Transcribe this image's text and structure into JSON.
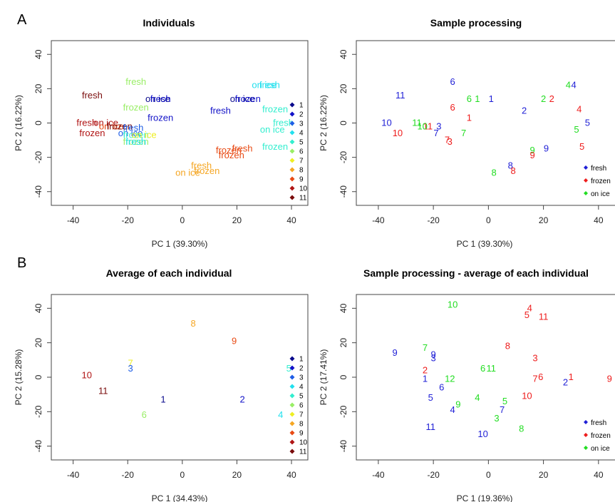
{
  "panel_letters": {
    "a": "A",
    "b": "B"
  },
  "colors": {
    "fresh": "#1f1fd6",
    "frozen": "#ee1c1c",
    "on_ice": "#22dd22",
    "individual": [
      "#0a0a8c",
      "#1212c8",
      "#1e5ee6",
      "#1e90ff",
      "#22e0ee",
      "#33eecf",
      "#99ee66",
      "#eeee22",
      "#f5a623",
      "#f07a1a",
      "#e84a14",
      "#b01414",
      "#7a0c0c"
    ]
  },
  "chart_data": [
    {
      "type": "scatter",
      "title": "Individuals",
      "xlabel": "PC 1 (39.30%)",
      "ylabel": "PC 2 (16.22%)",
      "xlim": [
        -48,
        46
      ],
      "ylim": [
        -48,
        48
      ],
      "xticks": [
        -40,
        -20,
        0,
        20,
        40
      ],
      "yticks": [
        -40,
        -20,
        0,
        20,
        40
      ],
      "legend": {
        "position": "right",
        "entries": [
          "1",
          "2",
          "3",
          "4",
          "5",
          "6",
          "7",
          "8",
          "9",
          "10",
          "11"
        ]
      },
      "points": [
        {
          "x": -33,
          "y": 16,
          "label": "fresh",
          "group": 11
        },
        {
          "x": -35,
          "y": 0,
          "label": "fresh",
          "group": 10
        },
        {
          "x": -33,
          "y": -6,
          "label": "frozen",
          "group": 10
        },
        {
          "x": -28,
          "y": 0,
          "label": "on ice",
          "group": 10
        },
        {
          "x": -26,
          "y": -2,
          "label": "on ice",
          "group": 9
        },
        {
          "x": -23,
          "y": -2,
          "label": "frozen",
          "group": 11
        },
        {
          "x": -17,
          "y": 24,
          "label": "fresh",
          "group": 6
        },
        {
          "x": -17,
          "y": 9,
          "label": "frozen",
          "group": 6
        },
        {
          "x": -9,
          "y": 14,
          "label": "on ice",
          "group": 1
        },
        {
          "x": -8,
          "y": 14,
          "label": "fresh",
          "group": 2
        },
        {
          "x": -8,
          "y": 3,
          "label": "frozen",
          "group": 2
        },
        {
          "x": -18,
          "y": -3,
          "label": "fresh",
          "group": 3
        },
        {
          "x": -19,
          "y": -6,
          "label": "on ice",
          "group": 3
        },
        {
          "x": -17,
          "y": -7,
          "label": "frozen",
          "group": 5
        },
        {
          "x": -17,
          "y": -11,
          "label": "frozen",
          "group": 6
        },
        {
          "x": -14,
          "y": -7,
          "label": "on ice",
          "group": 7
        },
        {
          "x": -17,
          "y": -11,
          "label": "fresh",
          "group": 4
        },
        {
          "x": 14,
          "y": 7,
          "label": "fresh",
          "group": 2
        },
        {
          "x": 22,
          "y": 14,
          "label": "on ice",
          "group": 1
        },
        {
          "x": 24,
          "y": 14,
          "label": "frozen",
          "group": 2
        },
        {
          "x": 30,
          "y": 22,
          "label": "on ice",
          "group": 4
        },
        {
          "x": 32,
          "y": 22,
          "label": "fresh",
          "group": 4
        },
        {
          "x": 34,
          "y": 8,
          "label": "frozen",
          "group": 5
        },
        {
          "x": 37,
          "y": 0,
          "label": "fresh",
          "group": 5
        },
        {
          "x": 33,
          "y": -4,
          "label": "on ice",
          "group": 5
        },
        {
          "x": 34,
          "y": -14,
          "label": "frozen",
          "group": 5
        },
        {
          "x": 17,
          "y": -16,
          "label": "frozen",
          "group": 9
        },
        {
          "x": 18,
          "y": -19,
          "label": "frozen",
          "group": 9
        },
        {
          "x": 22,
          "y": -15,
          "label": "fresh",
          "group": 9
        },
        {
          "x": 7,
          "y": -25,
          "label": "fresh",
          "group": 8
        },
        {
          "x": 9,
          "y": -28,
          "label": "frozen",
          "group": 8
        },
        {
          "x": 2,
          "y": -29,
          "label": "on ice",
          "group": 8
        }
      ]
    },
    {
      "type": "scatter",
      "title": "Sample processing",
      "xlabel": "PC 1 (39.30%)",
      "ylabel": "PC 2 (16.22%)",
      "xlim": [
        -48,
        46
      ],
      "ylim": [
        -48,
        48
      ],
      "xticks": [
        -40,
        -20,
        0,
        20,
        40
      ],
      "yticks": [
        -40,
        -20,
        0,
        20,
        40
      ],
      "legend": {
        "position": "bottom-right",
        "entries": [
          "fresh",
          "frozen",
          "on ice"
        ]
      },
      "points": [
        {
          "x": -32,
          "y": 16,
          "label": "11",
          "group": "fresh"
        },
        {
          "x": -37,
          "y": 0,
          "label": "10",
          "group": "fresh"
        },
        {
          "x": -33,
          "y": -6,
          "label": "10",
          "group": "frozen"
        },
        {
          "x": -26,
          "y": 0,
          "label": "11",
          "group": "on ice"
        },
        {
          "x": -22,
          "y": -2,
          "label": "11",
          "group": "frozen"
        },
        {
          "x": -24,
          "y": -2,
          "label": "10",
          "group": "on ice"
        },
        {
          "x": -13,
          "y": 24,
          "label": "6",
          "group": "fresh"
        },
        {
          "x": -13,
          "y": 9,
          "label": "6",
          "group": "frozen"
        },
        {
          "x": -7,
          "y": 14,
          "label": "6",
          "group": "on ice"
        },
        {
          "x": -4,
          "y": 14,
          "label": "1",
          "group": "on ice"
        },
        {
          "x": 1,
          "y": 14,
          "label": "1",
          "group": "fresh"
        },
        {
          "x": -7,
          "y": 3,
          "label": "1",
          "group": "frozen"
        },
        {
          "x": -18,
          "y": -2,
          "label": "3",
          "group": "fresh"
        },
        {
          "x": -19,
          "y": -6,
          "label": "7",
          "group": "fresh"
        },
        {
          "x": -14,
          "y": -11,
          "label": "3",
          "group": "frozen"
        },
        {
          "x": -15,
          "y": -10,
          "label": "7",
          "group": "frozen"
        },
        {
          "x": -9,
          "y": -6,
          "label": "7",
          "group": "on ice"
        },
        {
          "x": 13,
          "y": 7,
          "label": "2",
          "group": "fresh"
        },
        {
          "x": 20,
          "y": 14,
          "label": "2",
          "group": "on ice"
        },
        {
          "x": 23,
          "y": 14,
          "label": "2",
          "group": "frozen"
        },
        {
          "x": 29,
          "y": 22,
          "label": "4",
          "group": "on ice"
        },
        {
          "x": 31,
          "y": 22,
          "label": "4",
          "group": "fresh"
        },
        {
          "x": 33,
          "y": 8,
          "label": "4",
          "group": "frozen"
        },
        {
          "x": 36,
          "y": 0,
          "label": "5",
          "group": "fresh"
        },
        {
          "x": 32,
          "y": -4,
          "label": "5",
          "group": "on ice"
        },
        {
          "x": 34,
          "y": -14,
          "label": "5",
          "group": "frozen"
        },
        {
          "x": 16,
          "y": -16,
          "label": "9",
          "group": "on ice"
        },
        {
          "x": 16,
          "y": -19,
          "label": "9",
          "group": "frozen"
        },
        {
          "x": 21,
          "y": -15,
          "label": "9",
          "group": "fresh"
        },
        {
          "x": 8,
          "y": -25,
          "label": "8",
          "group": "fresh"
        },
        {
          "x": 9,
          "y": -28,
          "label": "8",
          "group": "frozen"
        },
        {
          "x": 2,
          "y": -29,
          "label": "8",
          "group": "on ice"
        }
      ]
    },
    {
      "type": "scatter",
      "title": "Average of each individual",
      "xlabel": "PC 1 (34.43%)",
      "ylabel": "PC 2 (15.28%)",
      "xlim": [
        -48,
        46
      ],
      "ylim": [
        -48,
        48
      ],
      "xticks": [
        -40,
        -20,
        0,
        20,
        40
      ],
      "yticks": [
        -40,
        -20,
        0,
        20,
        40
      ],
      "legend": {
        "position": "right",
        "entries": [
          "1",
          "2",
          "3",
          "4",
          "5",
          "6",
          "7",
          "8",
          "9",
          "10",
          "11"
        ]
      },
      "points": [
        {
          "x": 4,
          "y": 31,
          "label": "8",
          "group": 8
        },
        {
          "x": 19,
          "y": 21,
          "label": "9",
          "group": 9
        },
        {
          "x": -19,
          "y": 8,
          "label": "7",
          "group": 7
        },
        {
          "x": -19,
          "y": 5,
          "label": "3",
          "group": 3
        },
        {
          "x": 39,
          "y": 5,
          "label": "5",
          "group": 5
        },
        {
          "x": -35,
          "y": 1,
          "label": "10",
          "group": 10
        },
        {
          "x": -29,
          "y": -8,
          "label": "11",
          "group": 11
        },
        {
          "x": -7,
          "y": -13,
          "label": "1",
          "group": 1
        },
        {
          "x": 22,
          "y": -13,
          "label": "2",
          "group": 2
        },
        {
          "x": 36,
          "y": -22,
          "label": "4",
          "group": 4
        },
        {
          "x": -14,
          "y": -22,
          "label": "6",
          "group": 6
        }
      ]
    },
    {
      "type": "scatter",
      "title": "Sample processing - average of each individual",
      "xlabel": "PC 1 (19.36%)",
      "ylabel": "PC 2 (17.41%)",
      "xlim": [
        -48,
        46
      ],
      "ylim": [
        -48,
        48
      ],
      "xticks": [
        -40,
        -20,
        0,
        20,
        40
      ],
      "yticks": [
        -40,
        -20,
        0,
        20,
        40
      ],
      "legend": {
        "position": "bottom-right",
        "entries": [
          "fresh",
          "frozen",
          "on ice"
        ]
      },
      "points": [
        {
          "x": -13,
          "y": 42,
          "label": "10",
          "group": "on ice"
        },
        {
          "x": -34,
          "y": 14,
          "label": "9",
          "group": "fresh"
        },
        {
          "x": -23,
          "y": 17,
          "label": "7",
          "group": "on ice"
        },
        {
          "x": -20,
          "y": 13,
          "label": "9",
          "group": "fresh"
        },
        {
          "x": -20,
          "y": 11,
          "label": "3",
          "group": "fresh"
        },
        {
          "x": -23,
          "y": 4,
          "label": "2",
          "group": "frozen"
        },
        {
          "x": -23,
          "y": -1,
          "label": "1",
          "group": "fresh"
        },
        {
          "x": -21,
          "y": -12,
          "label": "5",
          "group": "fresh"
        },
        {
          "x": -17,
          "y": -6,
          "label": "6",
          "group": "fresh"
        },
        {
          "x": -14,
          "y": -1,
          "label": "12",
          "group": "on ice"
        },
        {
          "x": -11,
          "y": -16,
          "label": "9",
          "group": "on ice"
        },
        {
          "x": -13,
          "y": -19,
          "label": "4",
          "group": "fresh"
        },
        {
          "x": -21,
          "y": -29,
          "label": "11",
          "group": "fresh"
        },
        {
          "x": -2,
          "y": 5,
          "label": "6",
          "group": "on ice"
        },
        {
          "x": 1,
          "y": 5,
          "label": "11",
          "group": "on ice"
        },
        {
          "x": -4,
          "y": -12,
          "label": "4",
          "group": "on ice"
        },
        {
          "x": 3,
          "y": -24,
          "label": "3",
          "group": "on ice"
        },
        {
          "x": 6,
          "y": -14,
          "label": "5",
          "group": "on ice"
        },
        {
          "x": 5,
          "y": -19,
          "label": "7",
          "group": "fresh"
        },
        {
          "x": -2,
          "y": -33,
          "label": "10",
          "group": "fresh"
        },
        {
          "x": 12,
          "y": -30,
          "label": "8",
          "group": "on ice"
        },
        {
          "x": 7,
          "y": 18,
          "label": "8",
          "group": "frozen"
        },
        {
          "x": 15,
          "y": 40,
          "label": "4",
          "group": "frozen"
        },
        {
          "x": 14,
          "y": 36,
          "label": "5",
          "group": "frozen"
        },
        {
          "x": 20,
          "y": 35,
          "label": "11",
          "group": "frozen"
        },
        {
          "x": 17,
          "y": 11,
          "label": "3",
          "group": "frozen"
        },
        {
          "x": 17,
          "y": -1,
          "label": "7",
          "group": "frozen"
        },
        {
          "x": 19,
          "y": 0,
          "label": "6",
          "group": "frozen"
        },
        {
          "x": 14,
          "y": -11,
          "label": "10",
          "group": "frozen"
        },
        {
          "x": 30,
          "y": 0,
          "label": "1",
          "group": "frozen"
        },
        {
          "x": 28,
          "y": -3,
          "label": "2",
          "group": "fresh"
        },
        {
          "x": 44,
          "y": -1,
          "label": "9",
          "group": "frozen"
        }
      ]
    }
  ]
}
